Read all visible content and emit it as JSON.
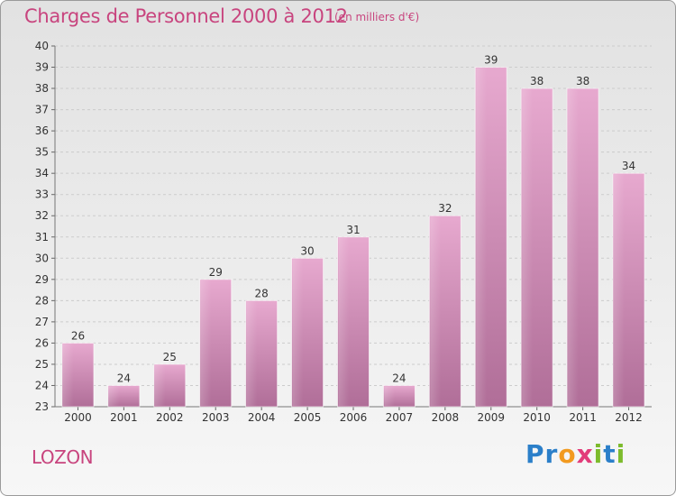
{
  "title": "Charges de Personnel 2000 à 2012",
  "subtitle": "(en milliers d'€)",
  "place": "LOZON",
  "logo": {
    "text": "Proxiti",
    "letters": [
      {
        "ch": "P",
        "color": "#2b7fc9"
      },
      {
        "ch": "r",
        "color": "#2b7fc9"
      },
      {
        "ch": "o",
        "color": "#f29a1f"
      },
      {
        "ch": "x",
        "color": "#e23c7a"
      },
      {
        "ch": "i",
        "color": "#7dbb2c"
      },
      {
        "ch": "t",
        "color": "#2b7fc9"
      },
      {
        "ch": "i",
        "color": "#7dbb2c"
      }
    ]
  },
  "colors": {
    "accent": "#c8447e",
    "bar_top": "#e7a9cf",
    "bar_bottom": "#b06e98"
  },
  "chart_data": {
    "type": "bar",
    "title": "Charges de Personnel 2000 à 2012",
    "subtitle": "(en milliers d'€)",
    "xlabel": "",
    "ylabel": "",
    "categories": [
      "2000",
      "2001",
      "2002",
      "2003",
      "2004",
      "2005",
      "2006",
      "2007",
      "2008",
      "2009",
      "2010",
      "2011",
      "2012"
    ],
    "values": [
      26,
      24,
      25,
      29,
      28,
      30,
      31,
      24,
      32,
      39,
      38,
      38,
      34
    ],
    "ylim": [
      23,
      40
    ],
    "yticks": [
      23,
      24,
      25,
      26,
      27,
      28,
      29,
      30,
      31,
      32,
      33,
      34,
      35,
      36,
      37,
      38,
      39,
      40
    ],
    "grid": true,
    "legend": "none"
  }
}
